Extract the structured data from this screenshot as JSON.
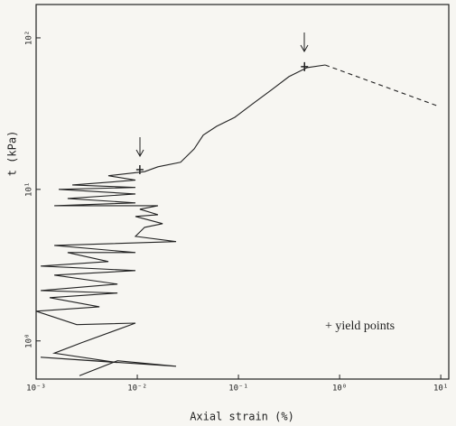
{
  "chart_data": {
    "type": "line",
    "x_label": "Axial strain (%)",
    "y_label": "t (kPa)",
    "log_x": true,
    "log_y": true,
    "xlim": [
      0.001,
      12
    ],
    "ylim": [
      0.56,
      166
    ],
    "xticks": [
      {
        "value": 0.001,
        "label": "10⁻³"
      },
      {
        "value": 0.01,
        "label": "10⁻²"
      },
      {
        "value": 0.1,
        "label": "10⁻¹"
      },
      {
        "value": 1,
        "label": "10⁰"
      },
      {
        "value": 10,
        "label": "10¹"
      }
    ],
    "yticks": [
      {
        "value": 1,
        "label": "10⁰"
      },
      {
        "value": 10,
        "label": "10¹"
      },
      {
        "value": 100,
        "label": "10²"
      }
    ],
    "series": [
      {
        "color": "#222222",
        "line_style": "solid",
        "x": [
          0.00268,
          0.00637,
          0.0242,
          0.00111,
          0.00637,
          0.00151,
          0.00279,
          0.0096,
          0.00252,
          0.001,
          0.00422,
          0.00136,
          0.00637,
          0.00111,
          0.00637,
          0.00151,
          0.0096,
          0.00111,
          0.00518,
          0.00205,
          0.0096,
          0.00151,
          0.0242,
          0.0096,
          0.0118,
          0.0178,
          0.0096,
          0.016,
          0.0106,
          0.016,
          0.00151,
          0.0096,
          0.00205,
          0.0096,
          0.00167,
          0.0096,
          0.00228,
          0.0096,
          0.00518,
          0.0118,
          0.016,
          0.0268,
          0.0365,
          0.0449,
          0.061,
          0.092,
          0.139,
          0.21,
          0.316,
          0.477,
          0.72
        ],
        "values": [
          0.59,
          0.74,
          0.68,
          0.78,
          0.72,
          0.83,
          0.97,
          1.31,
          1.28,
          1.57,
          1.68,
          1.93,
          2.07,
          2.15,
          2.37,
          2.72,
          2.91,
          3.12,
          3.34,
          3.83,
          3.83,
          4.27,
          4.52,
          4.9,
          5.62,
          5.94,
          6.63,
          6.81,
          7.4,
          7.81,
          7.81,
          8.15,
          8.71,
          9.33,
          10,
          10.3,
          10.7,
          11.5,
          12.3,
          13.1,
          14.1,
          15.1,
          18.5,
          22.8,
          26.1,
          29.9,
          36.8,
          45.2,
          55.5,
          63.6,
          66.2
        ]
      },
      {
        "color": "#222222",
        "line_style": "dashed",
        "x": [
          0.72,
          9.6
        ],
        "values": [
          66.2,
          35.3
        ]
      }
    ],
    "yield_points": {
      "label": "+ yield points",
      "x": [
        0.0106,
        0.45
      ],
      "values": [
        13.5,
        64.5
      ]
    }
  }
}
